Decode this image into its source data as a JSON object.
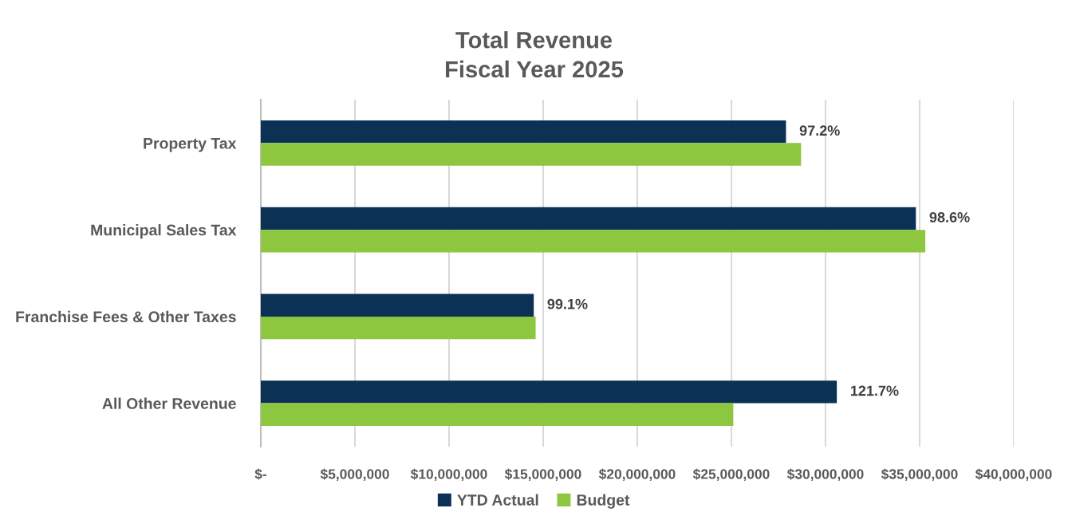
{
  "chart_data": {
    "type": "bar",
    "orientation": "horizontal",
    "title": "Total Revenue\nFiscal Year 2025",
    "categories": [
      "Property Tax",
      "Municipal Sales Tax",
      "Franchise Fees & Other Taxes",
      "All Other Revenue"
    ],
    "series": [
      {
        "name": "YTD Actual",
        "color": "#0b3155",
        "values": [
          27900000,
          34800000,
          14500000,
          30600000
        ]
      },
      {
        "name": "Budget",
        "color": "#8dc63f",
        "values": [
          28700000,
          35300000,
          14600000,
          25100000
        ]
      }
    ],
    "xlim": [
      0,
      40000000
    ],
    "xticks": [
      {
        "value": 0,
        "label": "$-"
      },
      {
        "value": 5000000,
        "label": "$5,000,000"
      },
      {
        "value": 10000000,
        "label": "$10,000,000"
      },
      {
        "value": 15000000,
        "label": "$15,000,000"
      },
      {
        "value": 20000000,
        "label": "$20,000,000"
      },
      {
        "value": 25000000,
        "label": "$25,000,000"
      },
      {
        "value": 30000000,
        "label": "$30,000,000"
      },
      {
        "value": 35000000,
        "label": "$35,000,000"
      },
      {
        "value": 40000000,
        "label": "$40,000,000"
      }
    ],
    "annotations": [
      {
        "text": "97.2%",
        "x": 27900000,
        "y": "Property Tax"
      },
      {
        "text": "98.6%",
        "x": 34800000,
        "y": "Municipal Sales Tax"
      },
      {
        "text": "99.1%",
        "x": 14500000,
        "y": "Franchise Fees & Other Taxes"
      },
      {
        "text": "121.7%",
        "x": 30600000,
        "y": "All Other Revenue"
      }
    ],
    "grid": "x",
    "legend": "bottom"
  }
}
